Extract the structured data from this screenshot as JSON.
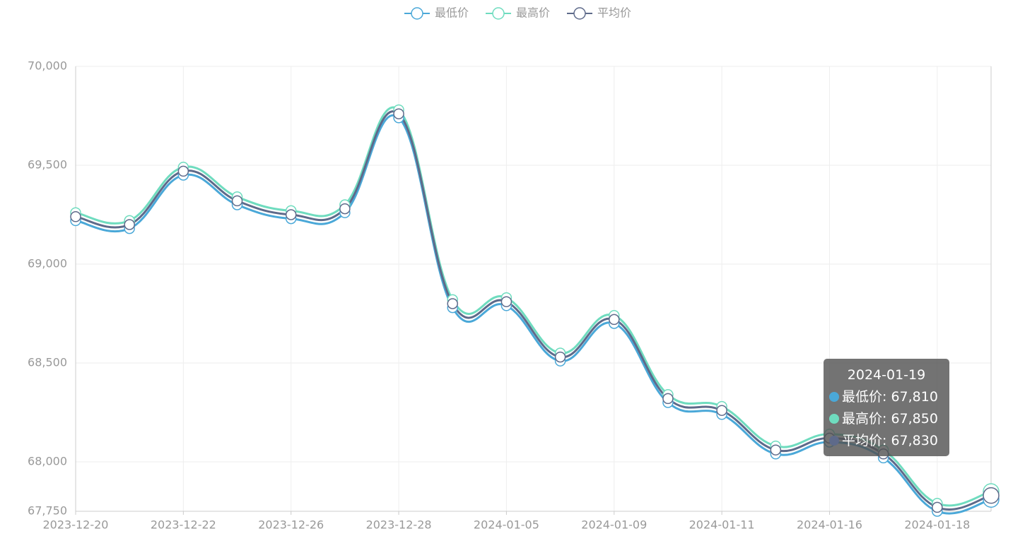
{
  "chart_data": {
    "type": "line",
    "smooth": true,
    "grid": true,
    "categories": [
      "2023-12-20",
      null,
      "2023-12-22",
      null,
      "2023-12-26",
      null,
      "2023-12-28",
      null,
      "2024-01-05",
      null,
      "2024-01-09",
      null,
      "2024-01-11",
      null,
      "2024-01-16",
      null,
      "2024-01-18",
      null
    ],
    "series": [
      {
        "name": "最低价",
        "color": "#4aa8d8",
        "values": [
          69220,
          69180,
          69450,
          69300,
          69230,
          69260,
          69740,
          68780,
          68790,
          68510,
          68700,
          68300,
          68240,
          68040,
          68100,
          68020,
          67750,
          67810
        ]
      },
      {
        "name": "最高价",
        "color": "#6fdcbf",
        "values": [
          69260,
          69220,
          69490,
          69340,
          69270,
          69300,
          69780,
          68820,
          68830,
          68550,
          68740,
          68340,
          68280,
          68080,
          68140,
          68060,
          67790,
          67850
        ]
      },
      {
        "name": "平均价",
        "color": "#5e6a8a",
        "values": [
          69240,
          69200,
          69470,
          69320,
          69250,
          69280,
          69760,
          68800,
          68810,
          68530,
          68720,
          68320,
          68260,
          68060,
          68120,
          68040,
          67770,
          67830
        ]
      }
    ],
    "ylim": [
      67750,
      70000
    ],
    "yticks": [
      {
        "value": 67750,
        "label": "67,750"
      },
      {
        "value": 68000,
        "label": "68,000"
      },
      {
        "value": 68500,
        "label": "68,500"
      },
      {
        "value": 69000,
        "label": "69,000"
      },
      {
        "value": 69500,
        "label": "69,500"
      },
      {
        "value": 70000,
        "label": "70,000"
      }
    ],
    "legend": "top",
    "tooltip": {
      "title": "2024-01-19",
      "lines": [
        "最低价: 67,810",
        "最高价: 67,850",
        "平均价: 67,830"
      ]
    }
  }
}
